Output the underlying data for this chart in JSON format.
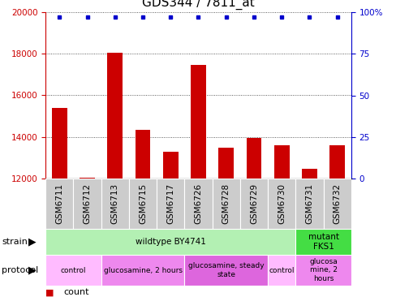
{
  "title": "GDS344 / 7811_at",
  "samples": [
    "GSM6711",
    "GSM6712",
    "GSM6713",
    "GSM6715",
    "GSM6717",
    "GSM6726",
    "GSM6728",
    "GSM6729",
    "GSM6730",
    "GSM6731",
    "GSM6732"
  ],
  "counts": [
    15400,
    12050,
    18050,
    14350,
    13300,
    17450,
    13500,
    13950,
    13600,
    12450,
    13600
  ],
  "percentiles": [
    97,
    97,
    97,
    97,
    97,
    97,
    97,
    97,
    97,
    97,
    97
  ],
  "ylim_left": [
    12000,
    20000
  ],
  "ylim_right": [
    0,
    100
  ],
  "yticks_left": [
    12000,
    14000,
    16000,
    18000,
    20000
  ],
  "yticks_right": [
    0,
    25,
    50,
    75,
    100
  ],
  "bar_color": "#cc0000",
  "dot_color": "#0000cc",
  "title_fontsize": 11,
  "tick_fontsize": 7.5,
  "label_fontsize": 8,
  "strain_row": [
    {
      "label": "wildtype BY4741",
      "start": 0,
      "end": 9,
      "color": "#b3f0b3"
    },
    {
      "label": "mutant\nFKS1",
      "start": 9,
      "end": 11,
      "color": "#44dd44"
    }
  ],
  "protocol_row": [
    {
      "label": "control",
      "start": 0,
      "end": 2,
      "color": "#ffbbff"
    },
    {
      "label": "glucosamine, 2 hours",
      "start": 2,
      "end": 5,
      "color": "#ee88ee"
    },
    {
      "label": "glucosamine, steady\nstate",
      "start": 5,
      "end": 8,
      "color": "#dd66dd"
    },
    {
      "label": "control",
      "start": 8,
      "end": 9,
      "color": "#ffbbff"
    },
    {
      "label": "glucosa\nmine, 2\nhours",
      "start": 9,
      "end": 11,
      "color": "#ee88ee"
    }
  ]
}
